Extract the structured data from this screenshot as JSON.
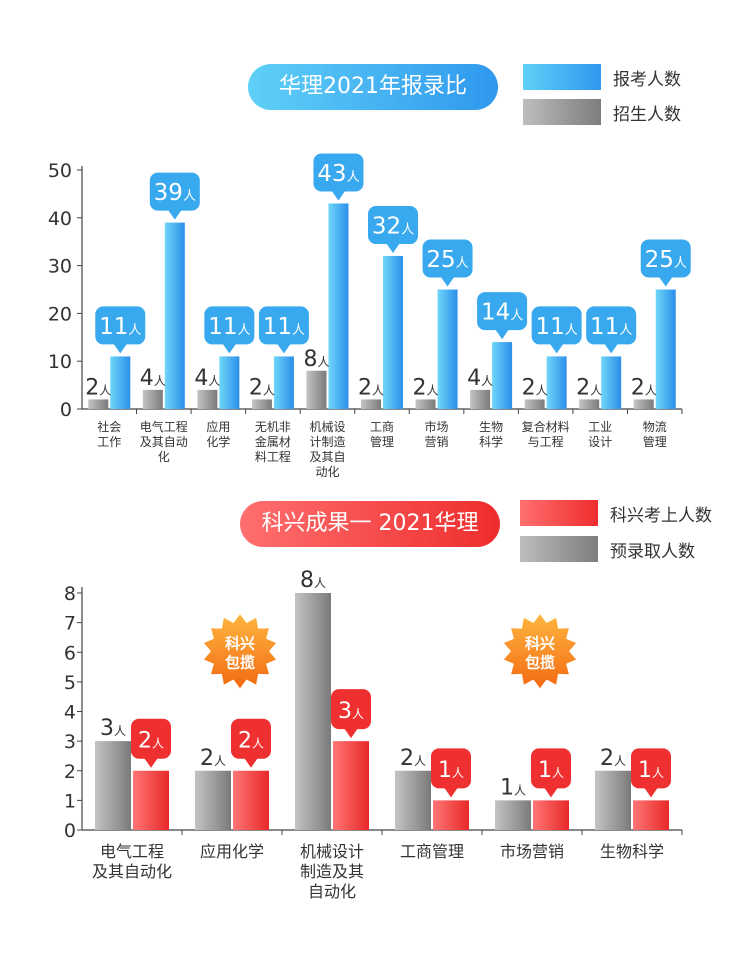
{
  "chart_data": [
    {
      "type": "bar",
      "title": "华理2021年报录比",
      "categories": [
        [
          "社会",
          "工作"
        ],
        [
          "电气工程",
          "及其自动",
          "化"
        ],
        [
          "应用",
          "化学"
        ],
        [
          "无机非",
          "金属材",
          "料工程"
        ],
        [
          "机械设",
          "计制造",
          "及其自",
          "动化"
        ],
        [
          "工商",
          "管理"
        ],
        [
          "市场",
          "营销"
        ],
        [
          "生物",
          "科学"
        ],
        [
          "复合材料",
          "与工程"
        ],
        [
          "工业",
          "设计"
        ],
        [
          "物流",
          "管理"
        ]
      ],
      "series": [
        {
          "name": "报考人数",
          "values": [
            11,
            39,
            11,
            11,
            43,
            32,
            25,
            14,
            11,
            11,
            25
          ]
        },
        {
          "name": "招生人数",
          "values": [
            2,
            4,
            4,
            2,
            8,
            2,
            2,
            4,
            2,
            2,
            2
          ]
        }
      ],
      "unit": "人",
      "ylim": [
        0,
        50
      ],
      "yticks": [
        0,
        10,
        20,
        30,
        40,
        50
      ],
      "legend_position": "top-right",
      "colors": {
        "报考人数": "#2f98ee",
        "招生人数": "#8a8a8a"
      }
    },
    {
      "type": "bar",
      "title": "科兴成果一 2021华理",
      "categories": [
        [
          "电气工程",
          "及其自动化"
        ],
        [
          "应用化学"
        ],
        [
          "机械设计",
          "制造及其",
          "自动化"
        ],
        [
          "工商管理"
        ],
        [
          "市场营销"
        ],
        [
          "生物科学"
        ]
      ],
      "series": [
        {
          "name": "预录取人数",
          "values": [
            3,
            2,
            8,
            2,
            1,
            2
          ]
        },
        {
          "name": "科兴考上人数",
          "values": [
            2,
            2,
            3,
            1,
            1,
            1
          ]
        }
      ],
      "unit": "人",
      "ylim": [
        0,
        8
      ],
      "yticks": [
        0,
        1,
        2,
        3,
        4,
        5,
        6,
        7,
        8
      ],
      "legend_position": "top-right",
      "badge_text": [
        "科兴",
        "包揽"
      ],
      "badge_categories": [
        1,
        4
      ],
      "colors": {
        "科兴考上人数": "#ee2d2d",
        "预录取人数": "#8a8a8a"
      }
    }
  ]
}
